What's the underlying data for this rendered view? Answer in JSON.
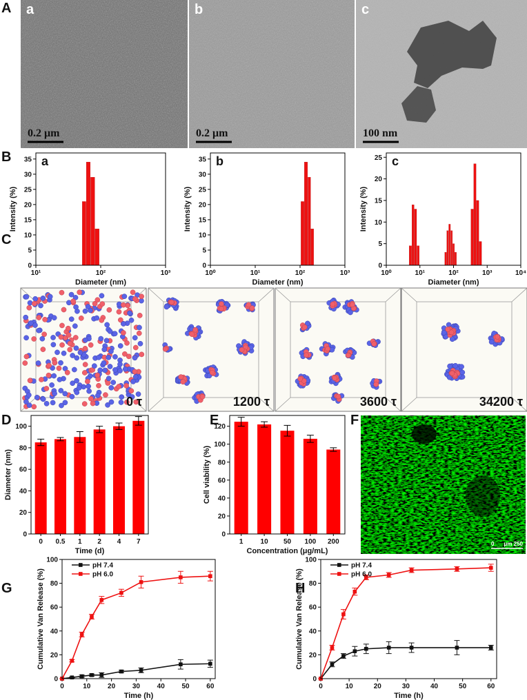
{
  "panel_labels": [
    "A",
    "B",
    "C",
    "D",
    "E",
    "F",
    "G",
    "H"
  ],
  "tem_images": [
    {
      "label": "a",
      "scale_bar": "0.2 μm"
    },
    {
      "label": "b",
      "scale_bar": "0.2 μm"
    },
    {
      "label": "c",
      "scale_bar": "100 nm"
    }
  ],
  "simulation_snapshots": [
    "0 τ",
    "1200 τ",
    "3600 τ",
    "34200 τ"
  ],
  "fluorescence_image": {
    "scale_bar_start": "0",
    "scale_bar_label": "μm 250"
  },
  "chart_data": [
    {
      "type": "histogram",
      "label": "a",
      "x_label": "Diameter (nm)",
      "y_label": "Intensity (%)",
      "log_x": true,
      "color": "#ee1111",
      "bins": [
        52,
        60,
        70,
        82,
        96
      ],
      "counts": [
        21,
        34,
        29,
        12
      ],
      "xlim": [
        10,
        1000
      ],
      "xticks": [
        {
          "value": 10,
          "label": "10¹"
        },
        {
          "value": 100,
          "label": "10²"
        },
        {
          "value": 1000,
          "label": "10³"
        }
      ],
      "ylim": [
        0,
        37
      ],
      "yticks": [
        0,
        5,
        10,
        15,
        20,
        25,
        30,
        35
      ]
    },
    {
      "type": "histogram",
      "label": "b",
      "x_label": "Diameter (nm)",
      "y_label": "Intensity (%)",
      "log_x": true,
      "color": "#ee1111",
      "bins": [
        105,
        125,
        150,
        175,
        205
      ],
      "counts": [
        21,
        34,
        29,
        12
      ],
      "xlim": [
        1,
        1000
      ],
      "xticks": [
        {
          "value": 1,
          "label": "10⁰"
        },
        {
          "value": 10,
          "label": "10¹"
        },
        {
          "value": 100,
          "label": "10²"
        },
        {
          "value": 1000,
          "label": "10³"
        }
      ],
      "ylim": [
        0,
        37
      ],
      "yticks": [
        0,
        5,
        10,
        15,
        20,
        25,
        30,
        35
      ]
    },
    {
      "type": "histogram",
      "label": "c",
      "x_label": "Diameter (nm)",
      "y_label": "Intensity (%)",
      "log_x": true,
      "color": "#ee1111",
      "bins": [
        4.8,
        5.8,
        6.9,
        8.2,
        9.8,
        55,
        63,
        72,
        83,
        95,
        109,
        125,
        330,
        400,
        480,
        580,
        700
      ],
      "counts": [
        4.5,
        14,
        13,
        4.5,
        0,
        3,
        8,
        9.5,
        8,
        5,
        3,
        0,
        13,
        23.5,
        15,
        5.5
      ],
      "xlim": [
        1,
        10000
      ],
      "xticks": [
        {
          "value": 1,
          "label": "10⁰"
        },
        {
          "value": 10,
          "label": "10¹"
        },
        {
          "value": 100,
          "label": "10²"
        },
        {
          "value": 1000,
          "label": "10³"
        },
        {
          "value": 10000,
          "label": "10⁴"
        }
      ],
      "ylim": [
        0,
        26
      ],
      "yticks": [
        0,
        5,
        10,
        15,
        20,
        25
      ]
    },
    {
      "type": "bar",
      "x_label": "Time (d)",
      "y_label": "Diameter (nm)",
      "color": "#ff0000",
      "categories": [
        "0",
        "0.5",
        "1",
        "2",
        "4",
        "7"
      ],
      "values": [
        85,
        88,
        90,
        97,
        100,
        105
      ],
      "errors": [
        3,
        1.5,
        5,
        3,
        3,
        4
      ],
      "ylim": [
        0,
        110
      ],
      "yticks": [
        0,
        20,
        40,
        60,
        80,
        100
      ]
    },
    {
      "type": "bar",
      "x_label": "Concentration (μg/mL)",
      "y_label": "Cell viability (%)",
      "color": "#ff0000",
      "categories": [
        "1",
        "10",
        "50",
        "100",
        "200"
      ],
      "values": [
        125,
        122,
        115,
        106,
        94
      ],
      "errors": [
        5,
        3,
        6,
        4,
        2
      ],
      "ylim": [
        0,
        132
      ],
      "yticks": [
        0,
        20,
        40,
        60,
        80,
        100,
        120
      ]
    },
    {
      "type": "line",
      "x_label": "Time (h)",
      "y_label": "Cumulative Van Release (%)",
      "x": [
        0,
        4,
        8,
        12,
        16,
        24,
        32,
        48,
        60
      ],
      "xlim": [
        0,
        62
      ],
      "xticks": [
        0,
        10,
        20,
        30,
        40,
        50,
        60
      ],
      "ylim": [
        0,
        100
      ],
      "yticks": [
        0,
        20,
        40,
        60,
        80,
        100
      ],
      "series": [
        {
          "name": "pH 7.4",
          "color": "#111111",
          "values": [
            0,
            1,
            2,
            3,
            3,
            6,
            7,
            12,
            12.5
          ],
          "errors": [
            0,
            0.5,
            1,
            1,
            2,
            1,
            2,
            4,
            3
          ]
        },
        {
          "name": "pH 6.0",
          "color": "#ee1111",
          "values": [
            0,
            15,
            37,
            52,
            66,
            72,
            81,
            85,
            86
          ],
          "errors": [
            0,
            1,
            2,
            2,
            3,
            3,
            5,
            5,
            4
          ]
        }
      ]
    },
    {
      "type": "line",
      "x_label": "Time (h)",
      "y_label": "Cumulative Van Release (%)",
      "x": [
        0,
        4,
        8,
        12,
        16,
        24,
        32,
        48,
        60
      ],
      "xlim": [
        0,
        62
      ],
      "xticks": [
        0,
        10,
        20,
        30,
        40,
        50,
        60
      ],
      "ylim": [
        0,
        100
      ],
      "yticks": [
        0,
        20,
        40,
        60,
        80,
        100
      ],
      "series": [
        {
          "name": "pH 7.4",
          "color": "#111111",
          "values": [
            0,
            12,
            19,
            23,
            25,
            26,
            26,
            26,
            26
          ],
          "errors": [
            0,
            2,
            2,
            4,
            4,
            5,
            4,
            6,
            2
          ]
        },
        {
          "name": "pH 6.0",
          "color": "#ee1111",
          "values": [
            0,
            26,
            54,
            73,
            85,
            87,
            91,
            92,
            93
          ],
          "errors": [
            0,
            2,
            4,
            3,
            2,
            2,
            2,
            2,
            3
          ]
        }
      ]
    }
  ]
}
